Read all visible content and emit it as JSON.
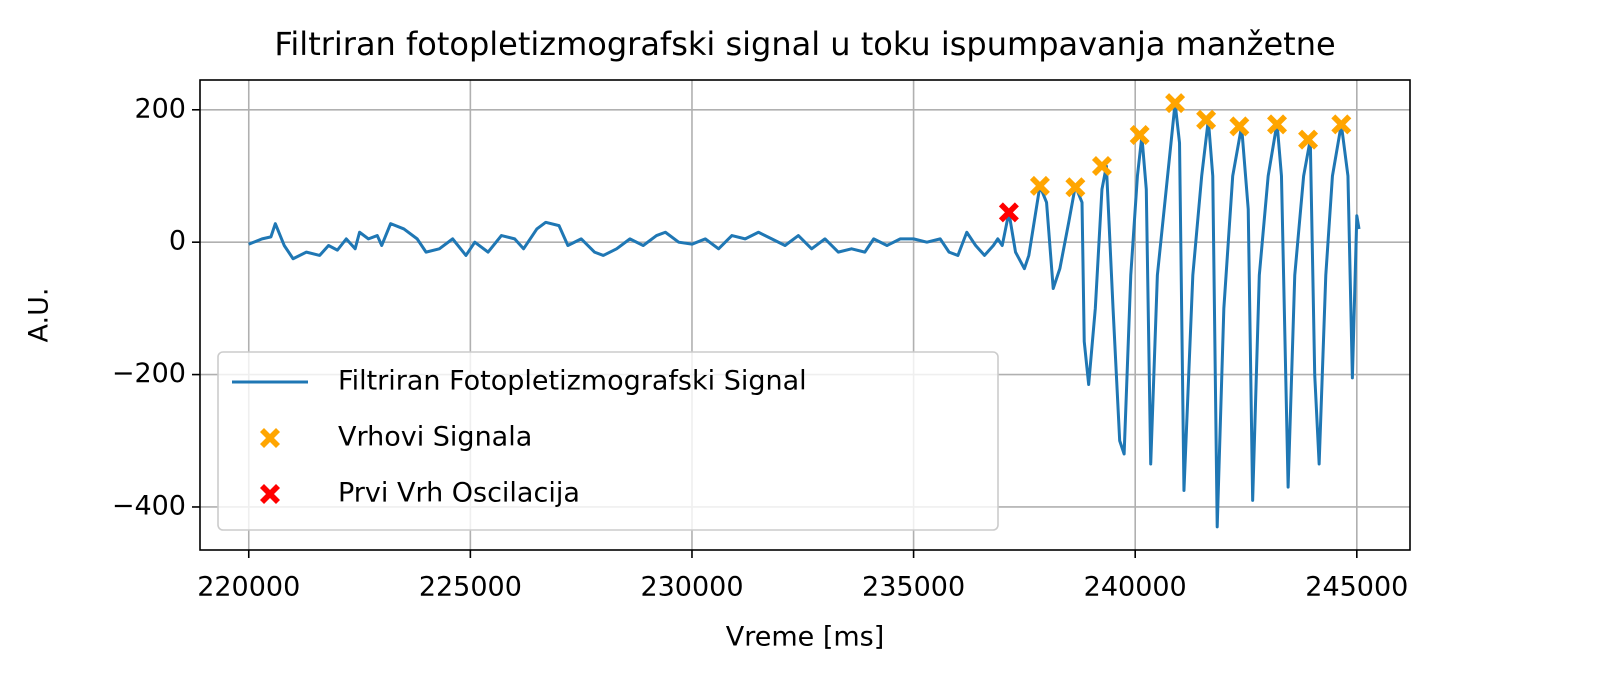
{
  "chart_data": {
    "type": "line",
    "title": "Filtriran fotopletizmografski signal u toku ispumpavanja manžetne",
    "xlabel": "Vreme [ms]",
    "ylabel": "A.U.",
    "xlim": [
      218900,
      246200
    ],
    "ylim": [
      -465,
      245
    ],
    "xticks": [
      220000,
      225000,
      230000,
      235000,
      240000,
      245000
    ],
    "yticks": [
      {
        "value": -400,
        "label": "−400"
      },
      {
        "value": -200,
        "label": "−200"
      },
      0,
      200
    ],
    "grid": true,
    "legend": "lower left",
    "series": [
      {
        "name": "Filtriran Fotopletizmografski Signal",
        "type": "line",
        "color": "#1f77b4",
        "x": [
          220000,
          220300,
          220500,
          220600,
          220800,
          221000,
          221300,
          221600,
          221800,
          222000,
          222200,
          222400,
          222500,
          222700,
          222900,
          223000,
          223200,
          223500,
          223800,
          224000,
          224300,
          224600,
          224900,
          225100,
          225400,
          225700,
          226000,
          226200,
          226500,
          226700,
          227000,
          227200,
          227500,
          227800,
          228000,
          228300,
          228600,
          228900,
          229200,
          229400,
          229700,
          230000,
          230300,
          230600,
          230900,
          231200,
          231500,
          231800,
          232100,
          232400,
          232700,
          233000,
          233300,
          233600,
          233900,
          234100,
          234400,
          234700,
          235000,
          235300,
          235600,
          235800,
          236000,
          236200,
          236400,
          236600,
          236800,
          236900,
          237000,
          237150,
          237300,
          237500,
          237600,
          237850,
          238000,
          238150,
          238300,
          238500,
          238650,
          238800,
          238850,
          238950,
          239100,
          239250,
          239350,
          239500,
          239650,
          239750,
          239900,
          240050,
          240150,
          240250,
          240350,
          240500,
          240700,
          240900,
          241000,
          241100,
          241300,
          241500,
          241650,
          241750,
          241850,
          242000,
          242200,
          242400,
          242550,
          242650,
          242800,
          243000,
          243200,
          243300,
          243450,
          243600,
          243800,
          243950,
          244050,
          244150,
          244300,
          244450,
          244650,
          244800,
          244900,
          245000,
          245050
        ],
        "values": [
          -3,
          5,
          8,
          28,
          -5,
          -25,
          -15,
          -20,
          -5,
          -12,
          5,
          -10,
          15,
          5,
          10,
          -5,
          28,
          20,
          5,
          -15,
          -10,
          5,
          -20,
          0,
          -15,
          10,
          5,
          -10,
          20,
          30,
          25,
          -5,
          5,
          -15,
          -20,
          -10,
          5,
          -5,
          10,
          15,
          0,
          -3,
          5,
          -10,
          10,
          5,
          15,
          5,
          -5,
          10,
          -10,
          5,
          -15,
          -10,
          -15,
          5,
          -5,
          5,
          5,
          0,
          5,
          -15,
          -20,
          15,
          -5,
          -20,
          -5,
          5,
          -5,
          45,
          -15,
          -40,
          -20,
          85,
          60,
          -70,
          -40,
          30,
          85,
          60,
          -150,
          -215,
          -100,
          80,
          115,
          -100,
          -300,
          -320,
          -50,
          100,
          160,
          80,
          -335,
          -50,
          80,
          210,
          150,
          -375,
          -50,
          100,
          185,
          100,
          -430,
          -100,
          100,
          175,
          50,
          -390,
          -50,
          100,
          180,
          100,
          -370,
          -50,
          100,
          155,
          -200,
          -335,
          -50,
          100,
          178,
          100,
          -205,
          40,
          20
        ]
      },
      {
        "name": "Vrhovi Signala",
        "type": "scatter",
        "marker": "X",
        "color": "orange",
        "x": [
          237850,
          238650,
          239250,
          240100,
          240900,
          241600,
          242350,
          243200,
          243900,
          244650
        ],
        "values": [
          85,
          83,
          115,
          162,
          210,
          185,
          175,
          178,
          155,
          178
        ]
      },
      {
        "name": "Prvi Vrh Oscilacija",
        "type": "scatter",
        "marker": "X",
        "color": "red",
        "x": [
          237150
        ],
        "values": [
          45
        ]
      }
    ]
  }
}
